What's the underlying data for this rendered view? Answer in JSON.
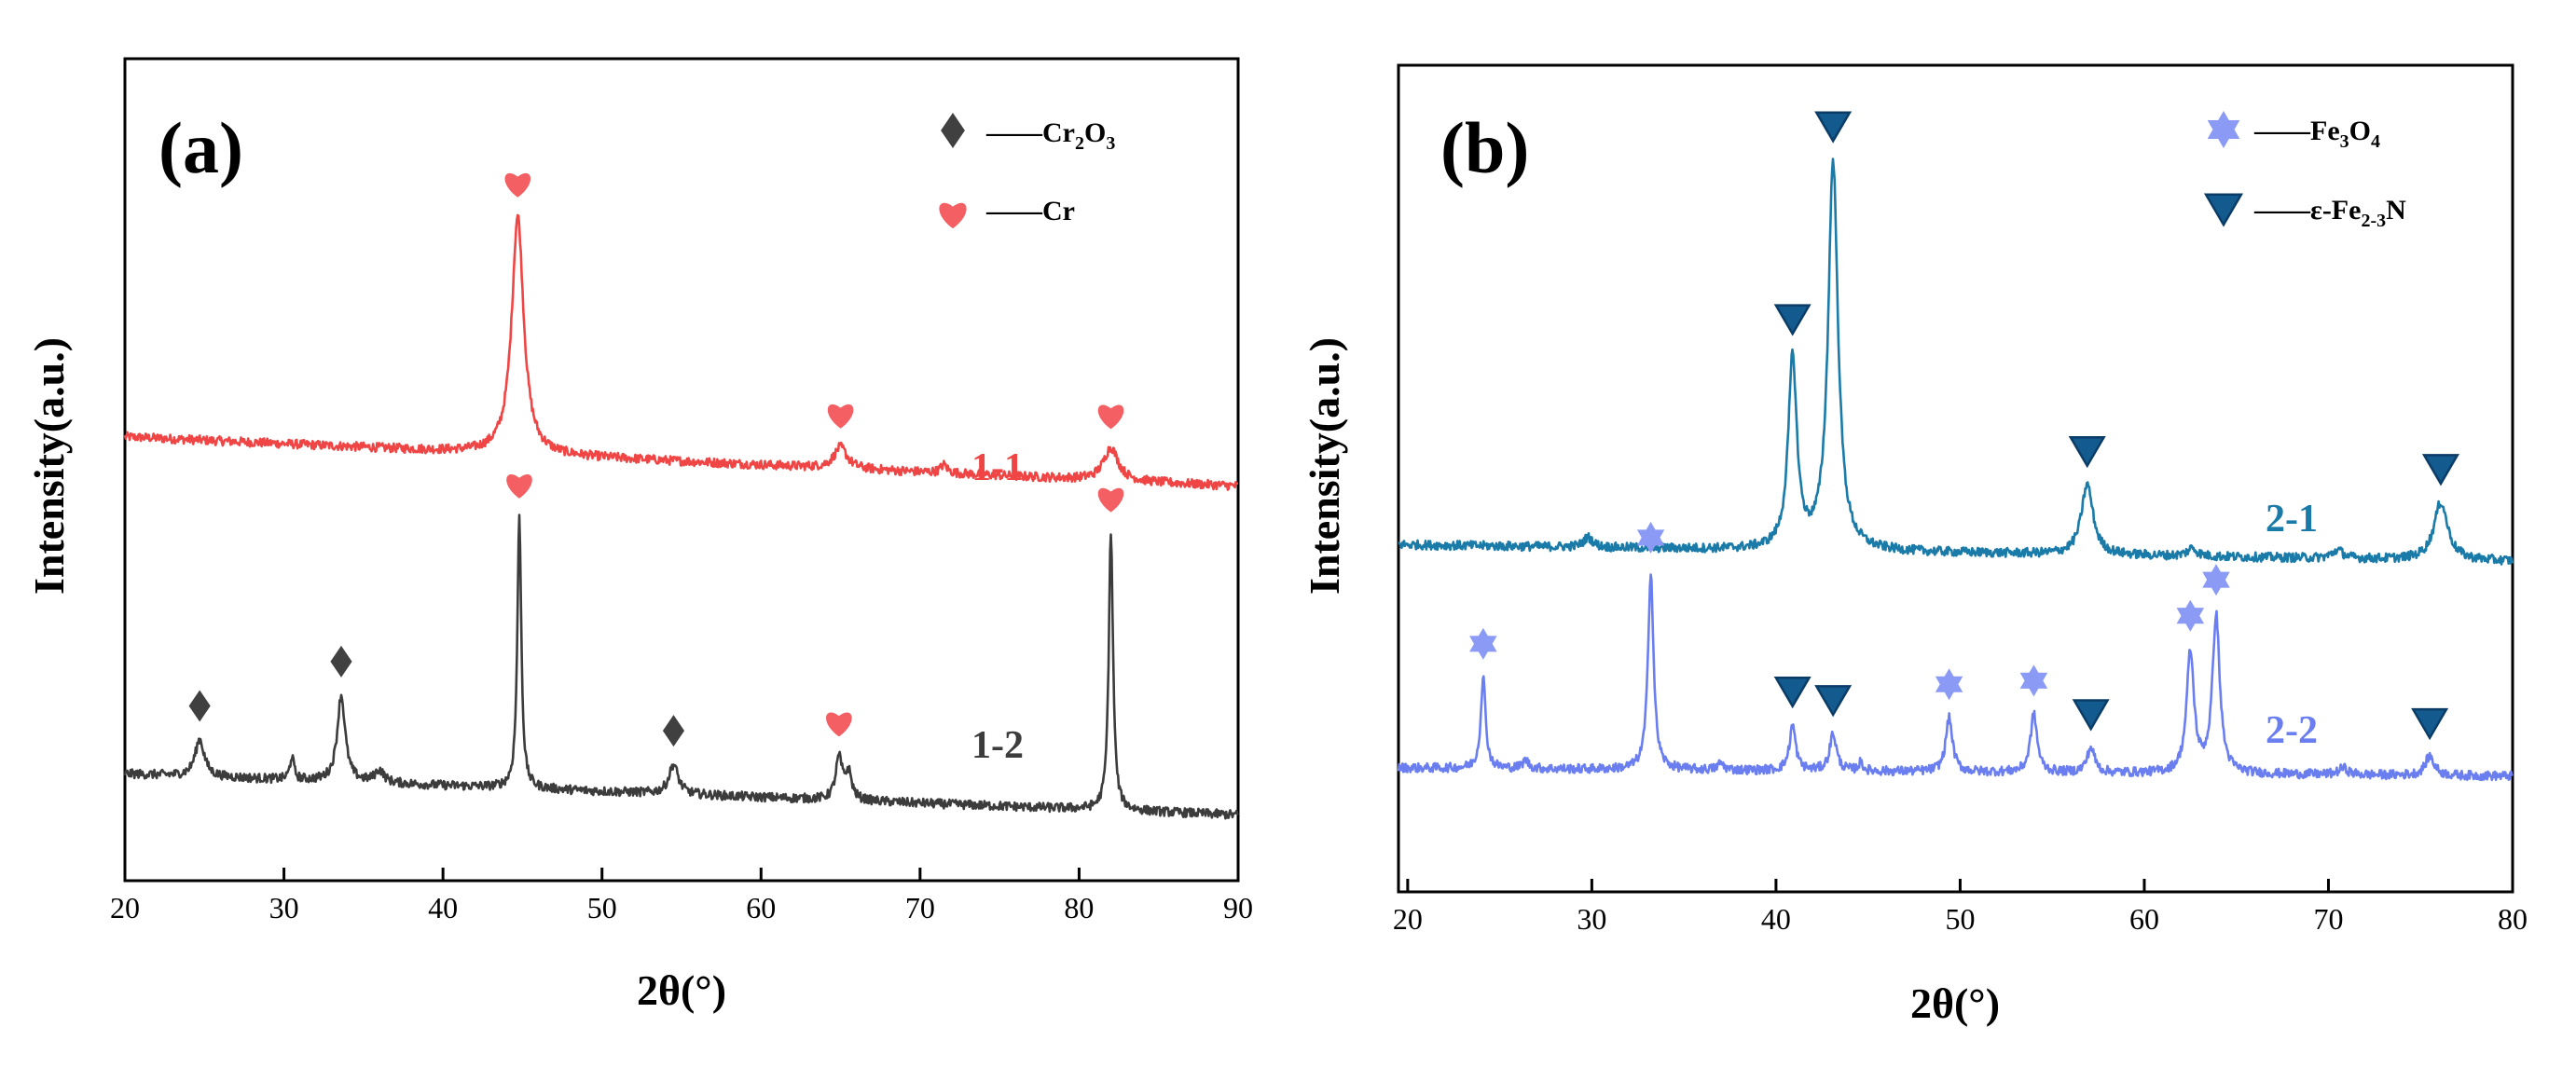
{
  "colors": {
    "s1_1": "#f04545",
    "s1_2": "#3c3c3c",
    "s2_1": "#1a7aa8",
    "s2_2": "#6a7ef0",
    "cr2o3_marker": "#404040",
    "cr_marker": "#f35f63",
    "fe3o4_marker": "#8a9af5",
    "fe2n_marker": "#135a8f"
  },
  "chart_data": [
    {
      "type": "line",
      "panel_label": "(a)",
      "xlabel": "2θ(°)",
      "ylabel": "Intensity(a.u.)",
      "xlim": [
        20,
        90
      ],
      "ylim": [
        0,
        100
      ],
      "xticks": [
        20,
        30,
        40,
        50,
        60,
        70,
        80,
        90
      ],
      "xtick_labels": [
        "20",
        "30",
        "40",
        "50",
        "60",
        "70",
        "80",
        "90"
      ],
      "legend": [
        {
          "marker": "diamond",
          "label_main": "——Cr",
          "label_sub1": "2",
          "label_mid": "O",
          "label_sub2": "3",
          "color": "#404040"
        },
        {
          "marker": "heart",
          "label_main": "——Cr",
          "label_sub1": "",
          "label_mid": "",
          "label_sub2": "",
          "color": "#f35f63"
        }
      ],
      "series": [
        {
          "name": "1-1",
          "color": "#f04545",
          "baseline_start": 54,
          "baseline_end": 48,
          "peaks": [
            {
              "x": 44.7,
              "height": 29,
              "width": 0.45
            },
            {
              "x": 65.0,
              "height": 2.6,
              "width": 0.5
            },
            {
              "x": 71.5,
              "height": 1.0,
              "width": 0.25
            },
            {
              "x": 82.0,
              "height": 4.0,
              "width": 0.55
            }
          ],
          "markers": [
            {
              "x": 44.7,
              "type": "heart"
            },
            {
              "x": 65.0,
              "type": "heart"
            },
            {
              "x": 82.0,
              "type": "heart"
            }
          ]
        },
        {
          "name": "1-2",
          "color": "#3c3c3c",
          "baseline_start": 13,
          "baseline_end": 8,
          "peaks": [
            {
              "x": 24.7,
              "height": 4.5,
              "width": 0.35
            },
            {
              "x": 30.5,
              "height": 2.8,
              "width": 0.15
            },
            {
              "x": 33.6,
              "height": 10.5,
              "width": 0.3
            },
            {
              "x": 36.0,
              "height": 1.5,
              "width": 0.35
            },
            {
              "x": 44.8,
              "height": 33,
              "width": 0.15
            },
            {
              "x": 54.5,
              "height": 3.6,
              "width": 0.35
            },
            {
              "x": 64.9,
              "height": 5.0,
              "width": 0.25
            },
            {
              "x": 65.5,
              "height": 3.2,
              "width": 0.25
            },
            {
              "x": 82.0,
              "height": 34,
              "width": 0.16
            }
          ],
          "markers": [
            {
              "x": 24.7,
              "type": "diamond"
            },
            {
              "x": 33.6,
              "type": "diamond"
            },
            {
              "x": 44.8,
              "type": "heart"
            },
            {
              "x": 54.5,
              "type": "diamond"
            },
            {
              "x": 64.9,
              "type": "heart"
            },
            {
              "x": 82.0,
              "type": "heart"
            }
          ]
        }
      ]
    },
    {
      "type": "line",
      "panel_label": "(b)",
      "xlabel": "2θ(°)",
      "ylabel": "Intensity(a.u.)",
      "xlim": [
        19.5,
        80
      ],
      "ylim": [
        0,
        100
      ],
      "xticks": [
        20,
        30,
        40,
        50,
        60,
        70,
        80
      ],
      "xtick_labels": [
        "20",
        "30",
        "40",
        "50",
        "60",
        "70",
        "80"
      ],
      "legend": [
        {
          "marker": "star",
          "label_main": "——Fe",
          "label_sub1": "3",
          "label_mid": "O",
          "label_sub2": "4",
          "color": "#8a9af5"
        },
        {
          "marker": "triangle",
          "label_main": "——ε-Fe",
          "label_sub1": "2-3",
          "label_mid": "N",
          "label_sub2": "",
          "color": "#135a8f"
        }
      ],
      "series": [
        {
          "name": "2-1",
          "color": "#1a7aa8",
          "baseline_start": 42,
          "baseline_end": 40,
          "peaks": [
            {
              "x": 29.8,
              "height": 1.2,
              "width": 0.3
            },
            {
              "x": 40.9,
              "height": 23,
              "width": 0.28
            },
            {
              "x": 43.1,
              "height": 47,
              "width": 0.32
            },
            {
              "x": 56.9,
              "height": 8.5,
              "width": 0.38
            },
            {
              "x": 62.6,
              "height": 1.0,
              "width": 0.3
            },
            {
              "x": 70.5,
              "height": 1.0,
              "width": 0.35
            },
            {
              "x": 76.1,
              "height": 7.0,
              "width": 0.45
            }
          ],
          "markers": [
            {
              "x": 40.9,
              "type": "triangle"
            },
            {
              "x": 43.1,
              "type": "triangle"
            },
            {
              "x": 56.9,
              "type": "triangle"
            },
            {
              "x": 76.1,
              "type": "triangle"
            }
          ]
        },
        {
          "name": "2-2",
          "color": "#6a7ef0",
          "baseline_start": 15,
          "baseline_end": 14,
          "peaks": [
            {
              "x": 24.1,
              "height": 11,
              "width": 0.16
            },
            {
              "x": 26.4,
              "height": 1.0,
              "width": 0.2
            },
            {
              "x": 33.2,
              "height": 24,
              "width": 0.18
            },
            {
              "x": 37.0,
              "height": 0.8,
              "width": 0.2
            },
            {
              "x": 40.9,
              "height": 5.5,
              "width": 0.2
            },
            {
              "x": 43.1,
              "height": 4.5,
              "width": 0.22
            },
            {
              "x": 44.6,
              "height": 1.0,
              "width": 0.15
            },
            {
              "x": 49.4,
              "height": 6.5,
              "width": 0.22
            },
            {
              "x": 54.0,
              "height": 7.0,
              "width": 0.22
            },
            {
              "x": 57.1,
              "height": 3.0,
              "width": 0.25
            },
            {
              "x": 62.5,
              "height": 14.5,
              "width": 0.24
            },
            {
              "x": 63.9,
              "height": 19,
              "width": 0.24
            },
            {
              "x": 70.8,
              "height": 0.8,
              "width": 0.3
            },
            {
              "x": 75.5,
              "height": 2.3,
              "width": 0.3
            }
          ],
          "markers": [
            {
              "x": 24.1,
              "type": "star"
            },
            {
              "x": 33.2,
              "type": "star"
            },
            {
              "x": 40.9,
              "type": "triangle"
            },
            {
              "x": 43.1,
              "type": "triangle"
            },
            {
              "x": 49.4,
              "type": "star"
            },
            {
              "x": 54.0,
              "type": "star"
            },
            {
              "x": 57.1,
              "type": "triangle"
            },
            {
              "x": 62.5,
              "type": "star"
            },
            {
              "x": 63.9,
              "type": "star"
            },
            {
              "x": 75.5,
              "type": "triangle"
            }
          ]
        }
      ]
    }
  ]
}
